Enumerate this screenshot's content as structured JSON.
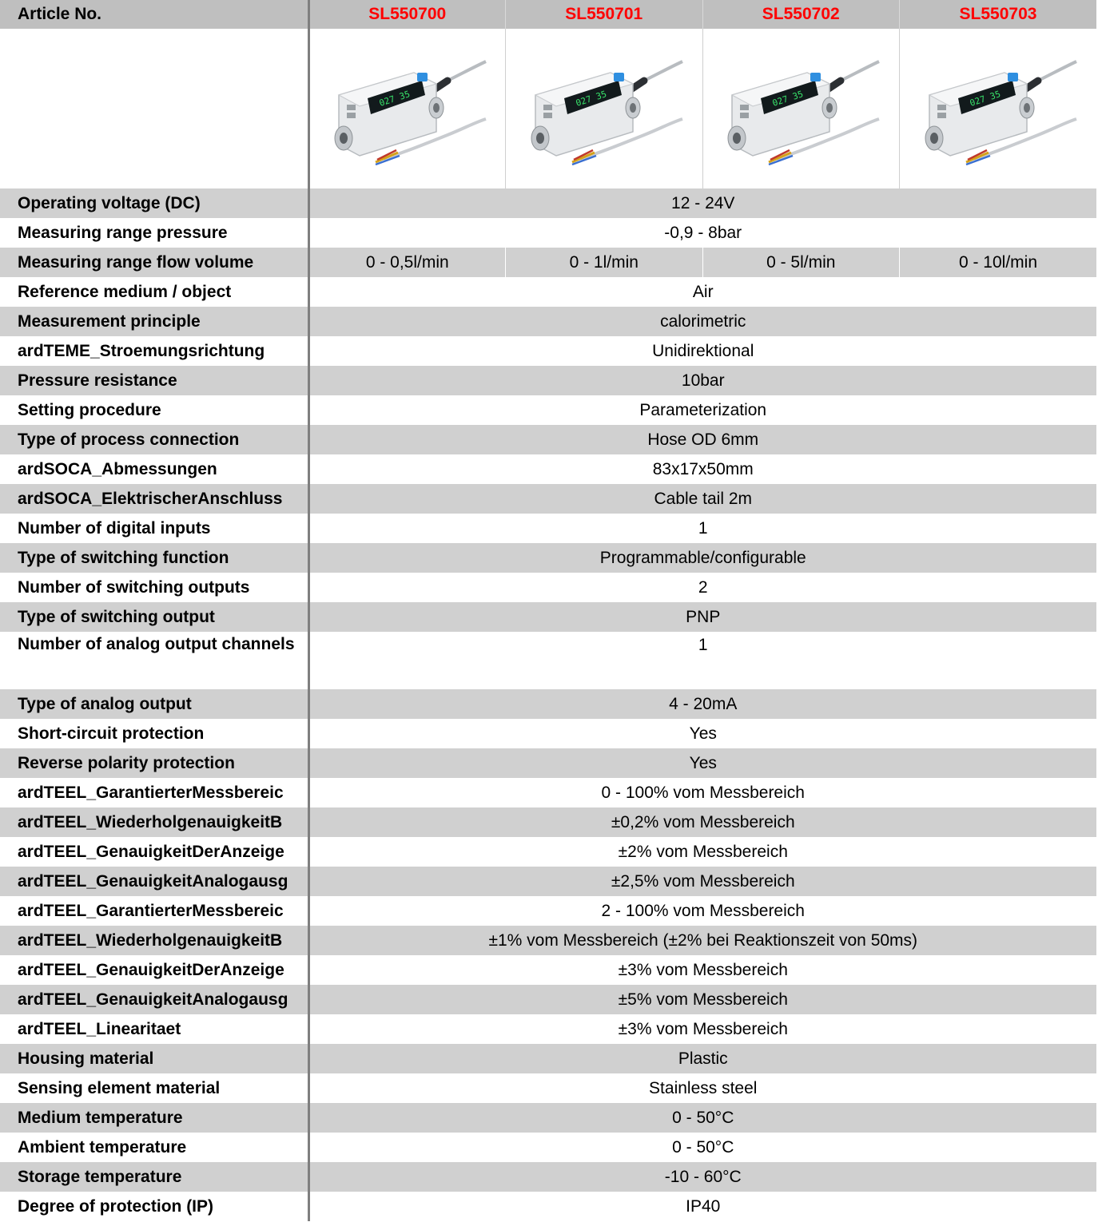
{
  "header": {
    "label": "Article No.",
    "articles": [
      "SL550700",
      "SL550701",
      "SL550702",
      "SL550703"
    ]
  },
  "images": [
    {
      "icon": "flow-sensor-product-image"
    },
    {
      "icon": "flow-sensor-product-image"
    },
    {
      "icon": "flow-sensor-product-image"
    },
    {
      "icon": "flow-sensor-product-image"
    }
  ],
  "colors": {
    "header_bg": "#bfbfbf",
    "row_shade": "#d0d0d0",
    "article_color": "#ff0000",
    "divider": "#7f7f7f"
  },
  "rows": [
    {
      "label": "Operating voltage (DC)",
      "values": [
        "12 - 24V"
      ]
    },
    {
      "label": "Measuring range pressure",
      "values": [
        "-0,9 - 8bar"
      ]
    },
    {
      "label": "Measuring range flow volume",
      "values": [
        "0 - 0,5l/min",
        "0 - 1l/min",
        "0 - 5l/min",
        "0 - 10l/min"
      ]
    },
    {
      "label": "Reference medium / object",
      "values": [
        "Air"
      ]
    },
    {
      "label": "Measurement principle",
      "values": [
        "calorimetric"
      ]
    },
    {
      "label": "ardTEME_Stroemungsrichtung",
      "values": [
        "Unidirektional"
      ]
    },
    {
      "label": "Pressure resistance",
      "values": [
        "10bar"
      ]
    },
    {
      "label": "Setting procedure",
      "values": [
        "Parameterization"
      ]
    },
    {
      "label": "Type of process connection",
      "values": [
        "Hose OD 6mm"
      ]
    },
    {
      "label": "ardSOCA_Abmessungen",
      "values": [
        "83x17x50mm"
      ]
    },
    {
      "label": "ardSOCA_ElektrischerAnschluss",
      "values": [
        "Cable tail 2m"
      ]
    },
    {
      "label": "Number of digital inputs",
      "values": [
        "1"
      ]
    },
    {
      "label": "Type of switching function",
      "values": [
        "Programmable/configurable"
      ]
    },
    {
      "label": "Number of switching outputs",
      "values": [
        "2"
      ]
    },
    {
      "label": "Type of switching output",
      "values": [
        "PNP"
      ]
    },
    {
      "label": "Number of analog output channels",
      "values": [
        "1"
      ]
    },
    {
      "label": "Type of analog output",
      "values": [
        "4 - 20mA"
      ]
    },
    {
      "label": "Short-circuit protection",
      "values": [
        "Yes"
      ]
    },
    {
      "label": "Reverse polarity protection",
      "values": [
        "Yes"
      ]
    },
    {
      "label": "ardTEEL_GarantierterMessbereic",
      "values": [
        "0 - 100% vom Messbereich"
      ]
    },
    {
      "label": "ardTEEL_WiederholgenauigkeitB",
      "values": [
        "±0,2% vom Messbereich"
      ]
    },
    {
      "label": "ardTEEL_GenauigkeitDerAnzeige",
      "values": [
        "±2% vom Messbereich"
      ]
    },
    {
      "label": "ardTEEL_GenauigkeitAnalogausg",
      "values": [
        "±2,5% vom Messbereich"
      ]
    },
    {
      "label": "ardTEEL_GarantierterMessbereic",
      "values": [
        "2 - 100% vom Messbereich"
      ]
    },
    {
      "label": "ardTEEL_WiederholgenauigkeitB",
      "values": [
        "±1% vom Messbereich (±2% bei Reaktionszeit von 50ms)"
      ]
    },
    {
      "label": "ardTEEL_GenauigkeitDerAnzeige",
      "values": [
        "±3% vom Messbereich"
      ]
    },
    {
      "label": "ardTEEL_GenauigkeitAnalogausg",
      "values": [
        "±5% vom Messbereich"
      ]
    },
    {
      "label": "ardTEEL_Linearitaet",
      "values": [
        "±3% vom Messbereich"
      ]
    },
    {
      "label": "Housing material",
      "values": [
        "Plastic"
      ]
    },
    {
      "label": "Sensing element material",
      "values": [
        "Stainless steel"
      ]
    },
    {
      "label": "Medium temperature",
      "values": [
        "0 - 50°C"
      ]
    },
    {
      "label": "Ambient temperature",
      "values": [
        "0 - 50°C"
      ]
    },
    {
      "label": "Storage temperature",
      "values": [
        "-10 - 60°C"
      ]
    },
    {
      "label": "Degree of protection (IP)",
      "values": [
        "IP40"
      ]
    }
  ]
}
